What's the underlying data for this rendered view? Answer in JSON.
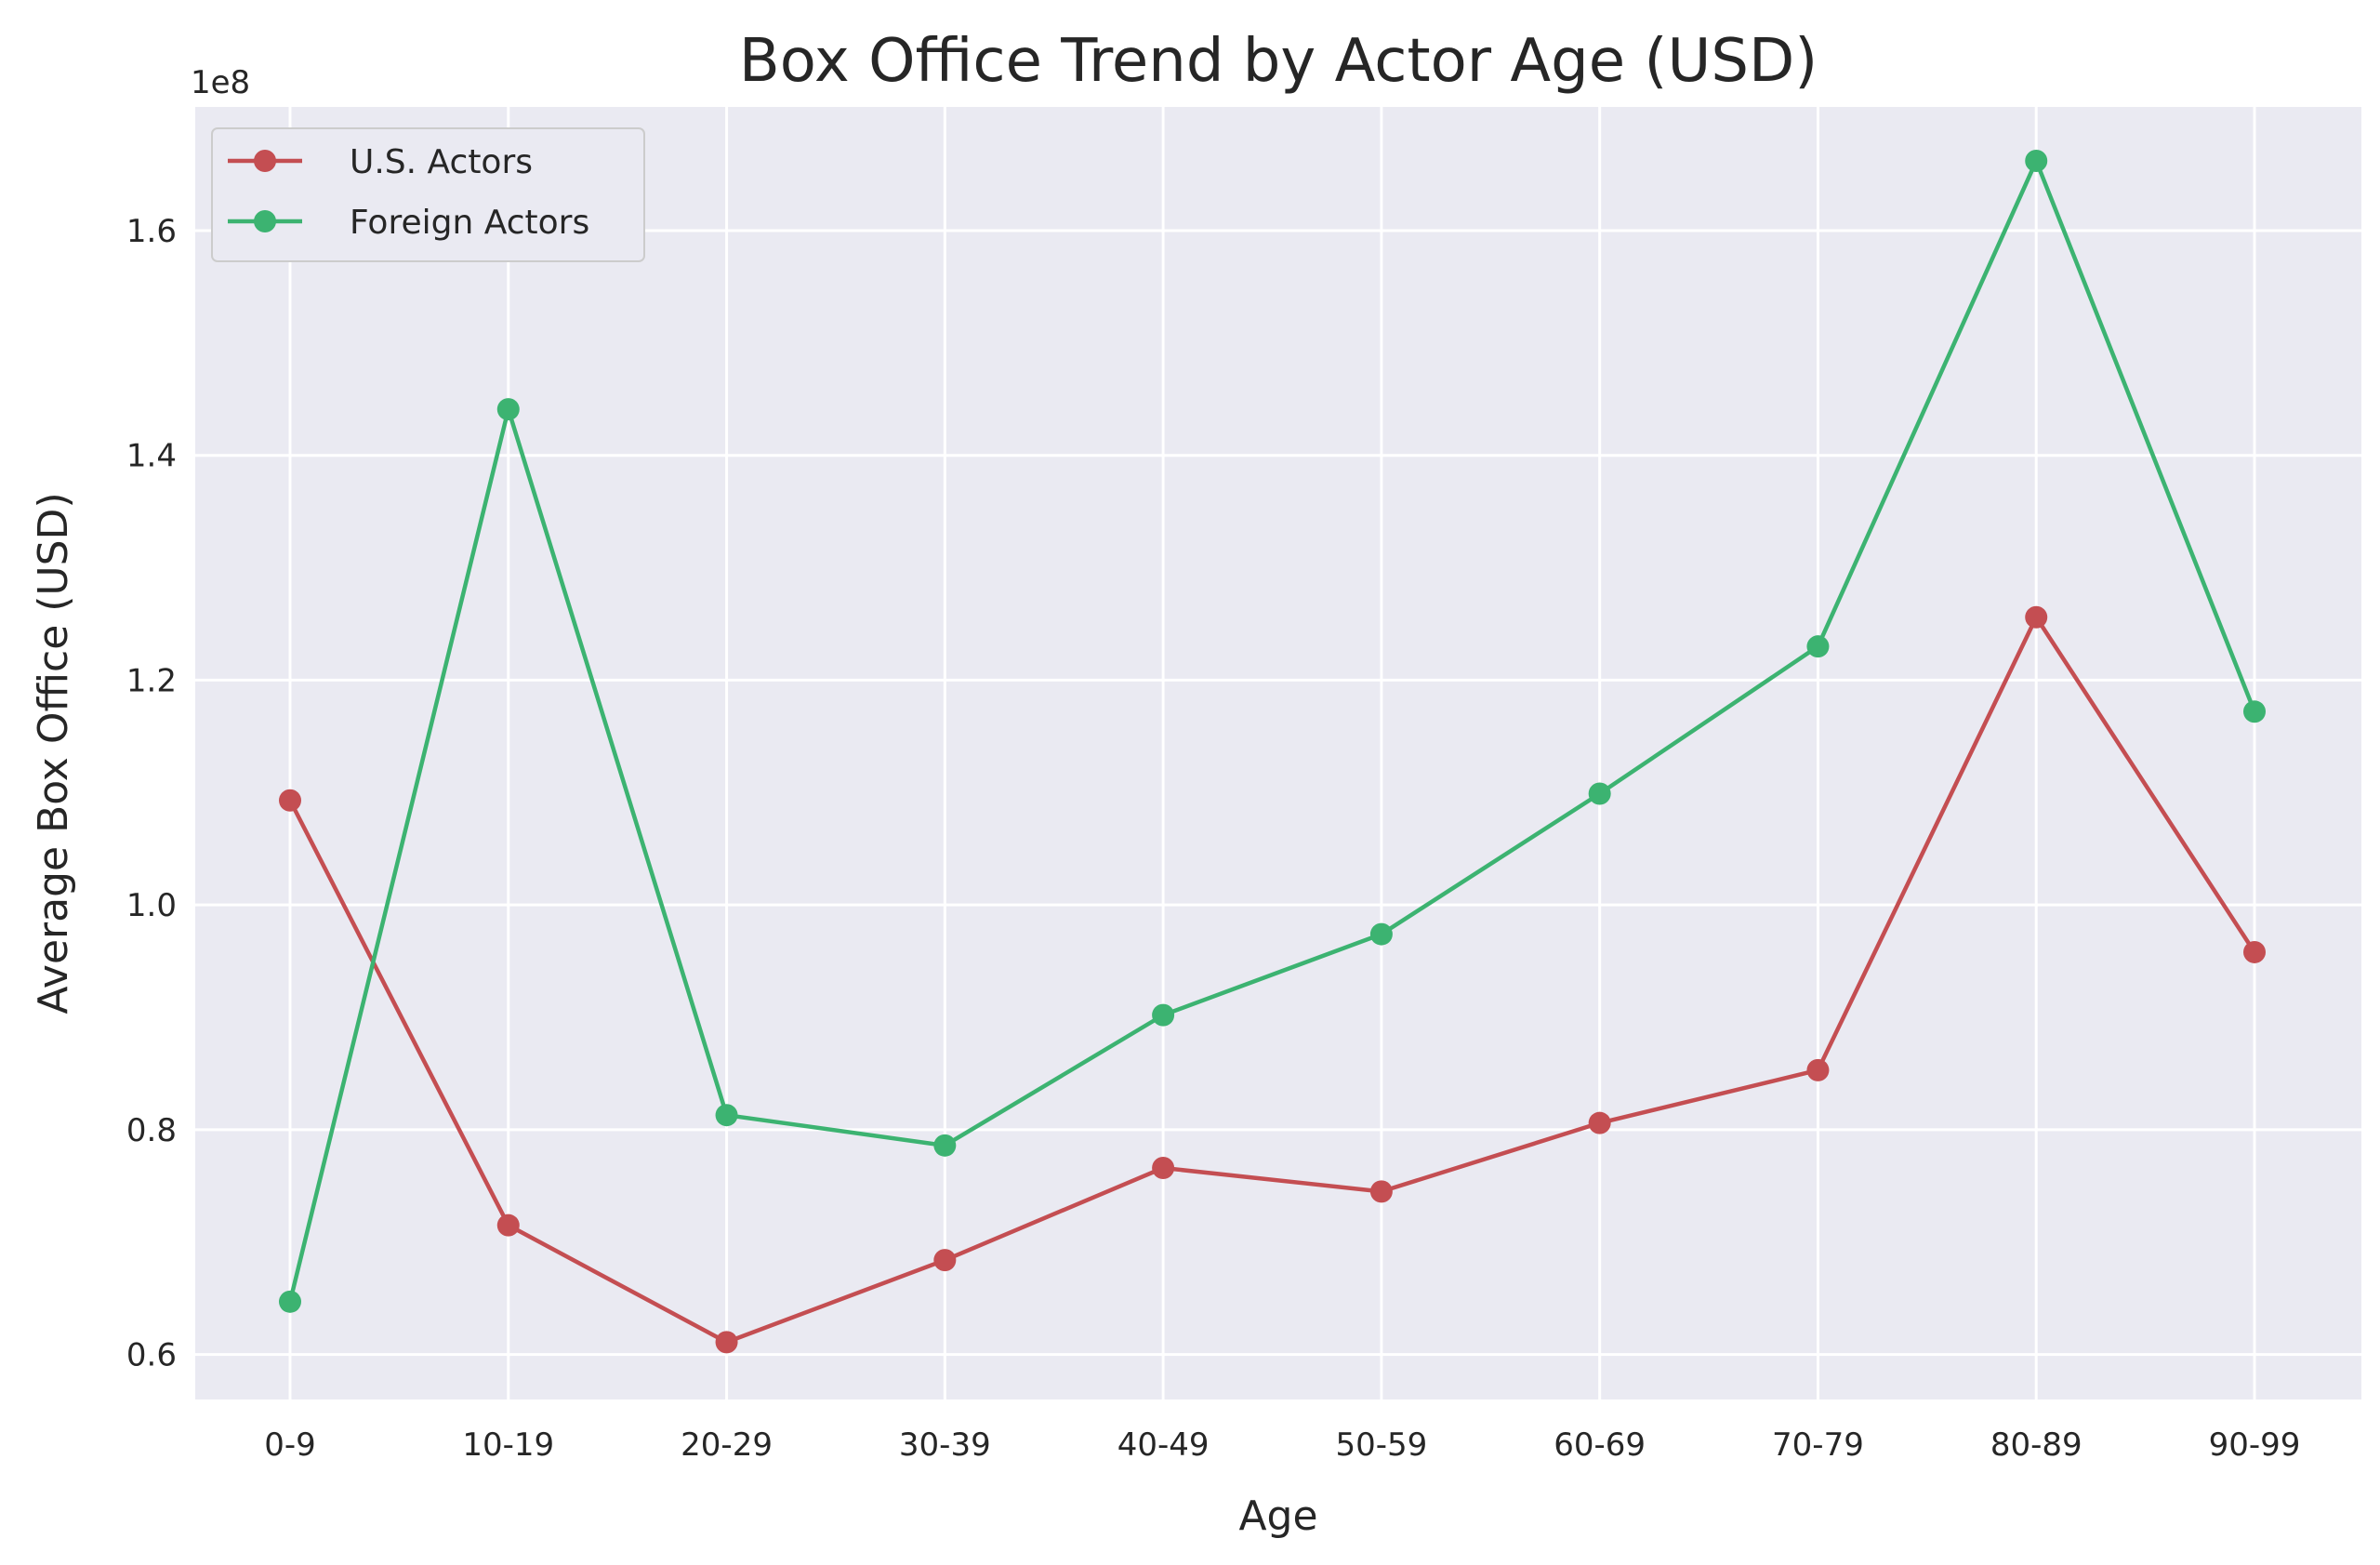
{
  "chart_data": {
    "type": "line",
    "title": "Box Office Trend by Actor Age (USD)",
    "xlabel": "Age",
    "ylabel": "Average Box Office (USD)",
    "y_exponent_label": "1e8",
    "categories": [
      "0-9",
      "10-19",
      "20-29",
      "30-39",
      "40-49",
      "50-59",
      "60-69",
      "70-79",
      "80-89",
      "90-99"
    ],
    "yticks": [
      0.6,
      0.8,
      1.0,
      1.2,
      1.4,
      1.6
    ],
    "ytick_labels": [
      "0.6",
      "0.8",
      "1.0",
      "1.2",
      "1.4",
      "1.6"
    ],
    "ylim": [
      0.56,
      1.71
    ],
    "grid": true,
    "legend_position": "top-left",
    "series": [
      {
        "name": "U.S. Actors",
        "color": "#c44e52",
        "values": [
          1.093,
          0.715,
          0.611,
          0.684,
          0.766,
          0.745,
          0.806,
          0.853,
          1.256,
          0.958
        ]
      },
      {
        "name": "Foreign Actors",
        "color": "#3cb371",
        "values": [
          0.647,
          1.441,
          0.813,
          0.786,
          0.902,
          0.974,
          1.099,
          1.23,
          1.662,
          1.172
        ]
      }
    ]
  }
}
